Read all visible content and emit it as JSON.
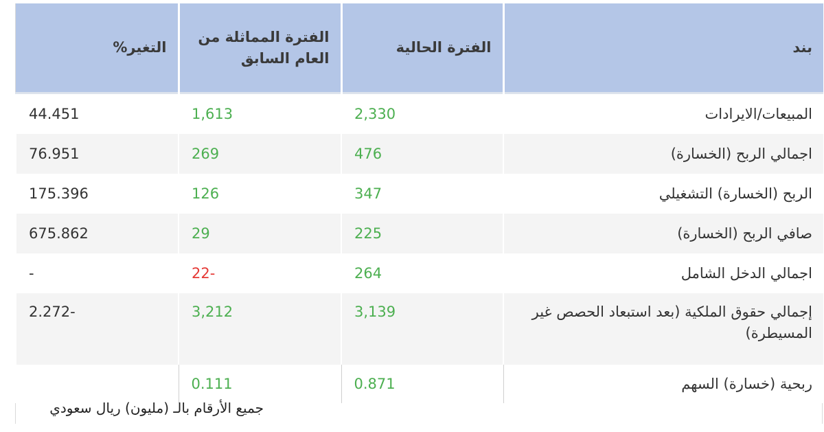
{
  "headers": {
    "item": "بند",
    "current": "الفترة الحالية",
    "previous": "الفترة المماثلة من العام السابق",
    "change": "التغير%"
  },
  "rows": [
    {
      "item": "المبيعات/الايرادات",
      "current": "2,330",
      "previous": "1,613",
      "change": "44.451"
    },
    {
      "item": "اجمالي الربح (الخسارة)",
      "current": "476",
      "previous": "269",
      "change": "76.951"
    },
    {
      "item": "الربح (الخسارة) التشغيلي",
      "current": "347",
      "previous": "126",
      "change": "175.396"
    },
    {
      "item": "صافي الربح (الخسارة)",
      "current": "225",
      "previous": "29",
      "change": "675.862"
    },
    {
      "item": "اجمالي الدخل الشامل",
      "current": "264",
      "previous": "-22",
      "change": "-"
    },
    {
      "item": "إجمالي حقوق الملكية (بعد استبعاد الحصص غير المسيطرة)",
      "current": "3,139",
      "previous": "3,212",
      "change": "-2.272"
    },
    {
      "item": "ربحية (خسارة) السهم",
      "current": "0.871",
      "previous": "0.111",
      "change": ""
    }
  ],
  "footnote": "جميع الأرقام بالـ (مليون) ريال سعودي",
  "colors": {
    "header_bg": "#b4c6e7",
    "positive": "#4caf50",
    "negative": "#e53935",
    "zebra": "#f4f4f4"
  }
}
